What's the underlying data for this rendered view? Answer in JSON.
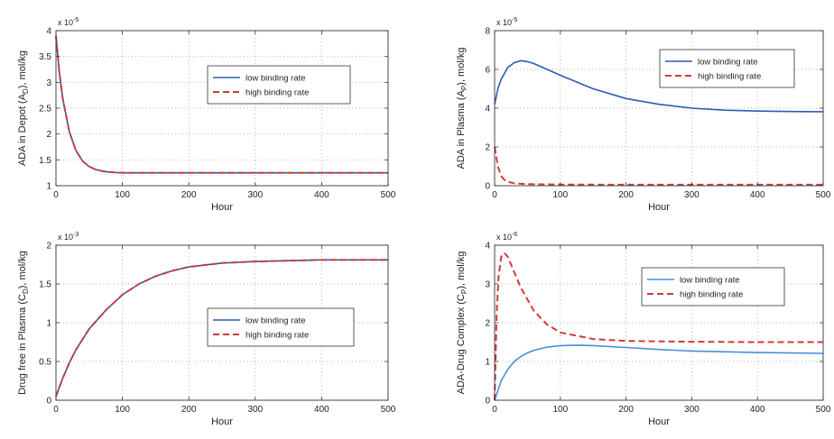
{
  "chart_data": [
    {
      "type": "line",
      "xlabel": "Hour",
      "ylabel": "ADA in Depot (A",
      "ylabel_sub": "D",
      "ylabel_tail": "), mol/kg",
      "exponent_base": "x 10",
      "exponent_power": "-5",
      "xlim": [
        0,
        500
      ],
      "ylim": [
        1,
        4
      ],
      "xticks": [
        0,
        100,
        200,
        300,
        400,
        500
      ],
      "yticks": [
        1,
        1.5,
        2,
        2.5,
        3,
        3.5,
        4
      ],
      "ytick_labels": [
        "1",
        "1.5",
        "2",
        "2.5",
        "3",
        "3.5",
        "4"
      ],
      "grid": true,
      "legend_position": "upper-right",
      "series": [
        {
          "name": "low binding rate",
          "color": "#2a5db0",
          "dash": "solid",
          "x": [
            0,
            5,
            10,
            20,
            30,
            40,
            50,
            60,
            70,
            80,
            90,
            100,
            150,
            200,
            300,
            400,
            500
          ],
          "y": [
            3.9,
            3.2,
            2.7,
            2.05,
            1.68,
            1.48,
            1.37,
            1.31,
            1.28,
            1.265,
            1.255,
            1.25,
            1.25,
            1.25,
            1.25,
            1.25,
            1.25
          ]
        },
        {
          "name": "high binding rate",
          "color": "#d03a3a",
          "dash": "dashed",
          "x": [
            0,
            5,
            10,
            20,
            30,
            40,
            50,
            60,
            70,
            80,
            90,
            100,
            150,
            200,
            300,
            400,
            500
          ],
          "y": [
            3.9,
            3.2,
            2.7,
            2.05,
            1.68,
            1.48,
            1.37,
            1.31,
            1.28,
            1.265,
            1.255,
            1.25,
            1.25,
            1.25,
            1.25,
            1.25,
            1.25
          ]
        }
      ]
    },
    {
      "type": "line",
      "xlabel": "Hour",
      "ylabel": "ADA in Plasma (A",
      "ylabel_sub": "P",
      "ylabel_tail": "), mol/kg",
      "exponent_base": "x 10",
      "exponent_power": "-5",
      "xlim": [
        0,
        500
      ],
      "ylim": [
        0,
        8
      ],
      "xticks": [
        0,
        100,
        200,
        300,
        400,
        500
      ],
      "yticks": [
        0,
        2,
        4,
        6,
        8
      ],
      "ytick_labels": [
        "0",
        "2",
        "4",
        "6",
        "8"
      ],
      "grid": true,
      "legend_position": "upper-right",
      "series": [
        {
          "name": "low binding rate",
          "color": "#2a5db0",
          "dash": "solid",
          "x": [
            0,
            5,
            10,
            20,
            30,
            40,
            50,
            60,
            80,
            100,
            150,
            200,
            250,
            300,
            350,
            400,
            450,
            500
          ],
          "y": [
            4.2,
            5.0,
            5.5,
            6.1,
            6.35,
            6.45,
            6.4,
            6.3,
            6.0,
            5.7,
            5.0,
            4.5,
            4.2,
            4.0,
            3.9,
            3.85,
            3.83,
            3.82
          ]
        },
        {
          "name": "high binding rate",
          "color": "#d03a3a",
          "dash": "dashed",
          "x": [
            0,
            2,
            5,
            10,
            15,
            20,
            30,
            50,
            100,
            200,
            300,
            400,
            500
          ],
          "y": [
            2.0,
            1.6,
            1.0,
            0.5,
            0.3,
            0.2,
            0.12,
            0.08,
            0.06,
            0.05,
            0.05,
            0.05,
            0.05
          ]
        }
      ]
    },
    {
      "type": "line",
      "xlabel": "Hour",
      "ylabel": "Drug free in Plasma (C",
      "ylabel_sub": "D",
      "ylabel_tail": "), mol/kg",
      "exponent_base": "x 10",
      "exponent_power": "-3",
      "xlim": [
        0,
        500
      ],
      "ylim": [
        0,
        2
      ],
      "xticks": [
        0,
        100,
        200,
        300,
        400,
        500
      ],
      "yticks": [
        0,
        0.5,
        1,
        1.5,
        2
      ],
      "ytick_labels": [
        "0",
        "0.5",
        "1",
        "1.5",
        "2"
      ],
      "grid": true,
      "legend_position": "lower-right",
      "series": [
        {
          "name": "low binding rate",
          "color": "#2a5db0",
          "dash": "solid",
          "x": [
            0,
            10,
            20,
            30,
            50,
            75,
            100,
            125,
            150,
            175,
            200,
            250,
            300,
            350,
            400,
            450,
            500
          ],
          "y": [
            0.05,
            0.28,
            0.48,
            0.65,
            0.92,
            1.16,
            1.36,
            1.5,
            1.6,
            1.67,
            1.72,
            1.77,
            1.79,
            1.8,
            1.81,
            1.81,
            1.81
          ]
        },
        {
          "name": "high binding rate",
          "color": "#d03a3a",
          "dash": "dashed",
          "x": [
            0,
            10,
            20,
            30,
            50,
            75,
            100,
            125,
            150,
            175,
            200,
            250,
            300,
            350,
            400,
            450,
            500
          ],
          "y": [
            0.05,
            0.28,
            0.48,
            0.65,
            0.92,
            1.16,
            1.36,
            1.5,
            1.6,
            1.67,
            1.72,
            1.77,
            1.79,
            1.8,
            1.81,
            1.81,
            1.81
          ]
        }
      ]
    },
    {
      "type": "line",
      "xlabel": "Hour",
      "ylabel": "ADA-Drug Complex (C",
      "ylabel_sub": "P",
      "ylabel_tail": "), mol/kg",
      "exponent_base": "x 10",
      "exponent_power": "-6",
      "xlim": [
        0,
        500
      ],
      "ylim": [
        0,
        4
      ],
      "xticks": [
        0,
        100,
        200,
        300,
        400,
        500
      ],
      "yticks": [
        0,
        1,
        2,
        3,
        4
      ],
      "ytick_labels": [
        "0",
        "1",
        "2",
        "3",
        "4"
      ],
      "grid": true,
      "legend_position": "upper-right",
      "series": [
        {
          "name": "low binding rate",
          "color": "#4a8fd8",
          "dash": "solid",
          "x": [
            0,
            10,
            20,
            30,
            40,
            50,
            60,
            80,
            100,
            130,
            150,
            200,
            250,
            300,
            400,
            500
          ],
          "y": [
            0,
            0.5,
            0.8,
            1.0,
            1.13,
            1.22,
            1.29,
            1.37,
            1.41,
            1.42,
            1.41,
            1.36,
            1.31,
            1.27,
            1.23,
            1.21
          ]
        },
        {
          "name": "high binding rate",
          "color": "#d03a3a",
          "dash": "dashed",
          "x": [
            0,
            3,
            6,
            10,
            15,
            20,
            25,
            30,
            40,
            50,
            60,
            80,
            100,
            150,
            200,
            300,
            400,
            500
          ],
          "y": [
            0,
            2.2,
            3.2,
            3.7,
            3.8,
            3.7,
            3.5,
            3.3,
            2.9,
            2.6,
            2.3,
            1.95,
            1.75,
            1.58,
            1.53,
            1.51,
            1.5,
            1.5
          ]
        }
      ]
    }
  ]
}
